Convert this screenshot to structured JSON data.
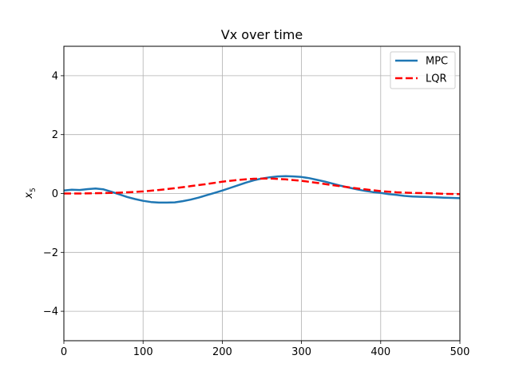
{
  "chart_data": {
    "type": "line",
    "title": "Vx over time",
    "xlabel": "",
    "ylabel": "x",
    "ylabel_sub": "5",
    "xlim": [
      0,
      500
    ],
    "ylim": [
      -5,
      5
    ],
    "x_ticks": [
      0,
      100,
      200,
      300,
      400,
      500
    ],
    "y_ticks": [
      -4,
      -2,
      0,
      2,
      4
    ],
    "y_tick_labels": [
      "−4",
      "−2",
      "0",
      "2",
      "4"
    ],
    "grid": true,
    "legend_position": "top-right",
    "series": [
      {
        "name": "MPC",
        "color": "#1f77b4",
        "style": "solid",
        "x": [
          0,
          10,
          20,
          30,
          40,
          50,
          60,
          70,
          80,
          90,
          100,
          110,
          120,
          130,
          140,
          150,
          160,
          170,
          180,
          190,
          200,
          210,
          220,
          230,
          240,
          250,
          260,
          270,
          280,
          290,
          300,
          310,
          320,
          330,
          340,
          350,
          360,
          370,
          380,
          390,
          400,
          410,
          420,
          430,
          440,
          450,
          460,
          470,
          480,
          490,
          500
        ],
        "y": [
          0.1,
          0.13,
          0.12,
          0.15,
          0.17,
          0.14,
          0.06,
          -0.03,
          -0.12,
          -0.19,
          -0.25,
          -0.29,
          -0.31,
          -0.31,
          -0.3,
          -0.26,
          -0.21,
          -0.14,
          -0.06,
          0.02,
          0.1,
          0.19,
          0.28,
          0.37,
          0.45,
          0.51,
          0.55,
          0.58,
          0.59,
          0.58,
          0.56,
          0.52,
          0.46,
          0.4,
          0.33,
          0.26,
          0.2,
          0.14,
          0.09,
          0.05,
          0.02,
          -0.02,
          -0.05,
          -0.08,
          -0.1,
          -0.11,
          -0.12,
          -0.13,
          -0.14,
          -0.15,
          -0.16
        ]
      },
      {
        "name": "LQR",
        "color": "#ff0000",
        "style": "dashed",
        "x": [
          0,
          20,
          40,
          60,
          80,
          100,
          120,
          140,
          160,
          180,
          200,
          220,
          240,
          260,
          280,
          300,
          320,
          340,
          360,
          380,
          400,
          420,
          440,
          460,
          480,
          500
        ],
        "y": [
          0.0,
          0.0,
          0.01,
          0.02,
          0.04,
          0.07,
          0.12,
          0.18,
          0.25,
          0.32,
          0.4,
          0.46,
          0.5,
          0.51,
          0.48,
          0.43,
          0.36,
          0.28,
          0.21,
          0.14,
          0.08,
          0.04,
          0.02,
          0.01,
          -0.01,
          -0.02
        ]
      }
    ]
  }
}
